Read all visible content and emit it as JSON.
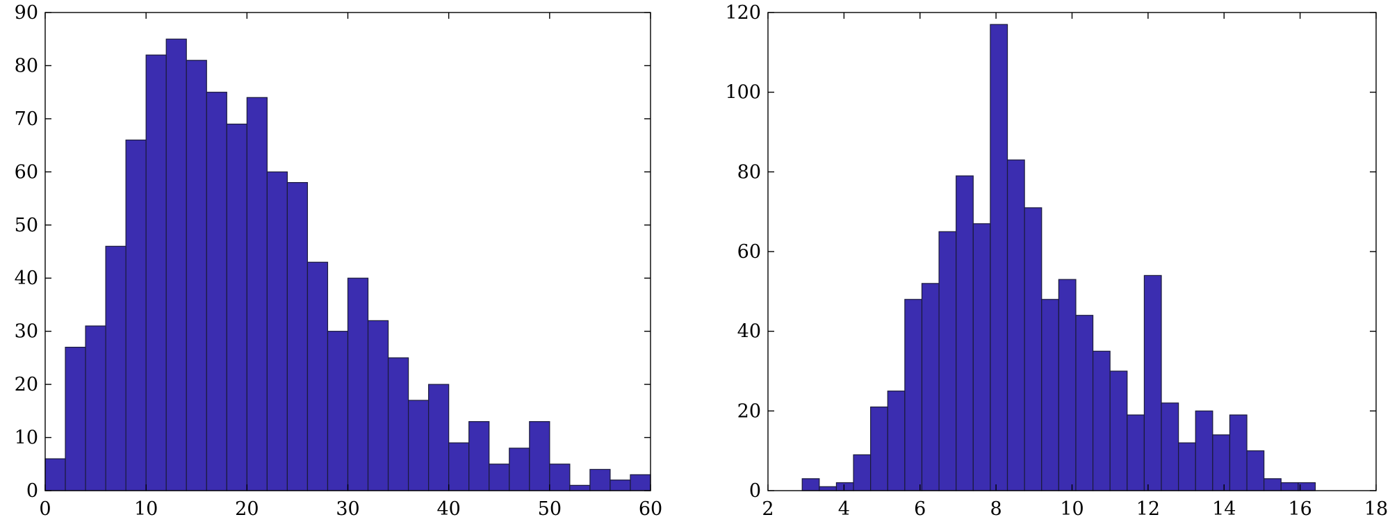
{
  "bar_color": "#3b2db0",
  "chart_data": [
    {
      "type": "bar",
      "title": "",
      "xlabel": "",
      "ylabel": "",
      "xlim": [
        0,
        60
      ],
      "ylim": [
        0,
        90
      ],
      "x_ticks": [
        0,
        10,
        20,
        30,
        40,
        50,
        60
      ],
      "y_ticks": [
        0,
        10,
        20,
        30,
        40,
        50,
        60,
        70,
        80,
        90
      ],
      "bin_edges": [
        0,
        2,
        4,
        6,
        8,
        10,
        12,
        14,
        16,
        18,
        20,
        22,
        24,
        26,
        28,
        30,
        32,
        34,
        36,
        38,
        40,
        42,
        44,
        46,
        48,
        50,
        52,
        54,
        56,
        58,
        60
      ],
      "values": [
        6,
        27,
        31,
        46,
        66,
        82,
        85,
        81,
        75,
        69,
        74,
        60,
        58,
        43,
        30,
        40,
        32,
        25,
        17,
        20,
        9,
        13,
        5,
        8,
        13,
        5,
        1,
        4,
        2,
        3
      ],
      "grid": false
    },
    {
      "type": "bar",
      "title": "",
      "xlabel": "",
      "ylabel": "",
      "xlim": [
        2,
        18
      ],
      "ylim": [
        0,
        120
      ],
      "x_ticks": [
        2,
        4,
        6,
        8,
        10,
        12,
        14,
        16,
        18
      ],
      "y_ticks": [
        0,
        20,
        40,
        60,
        80,
        100,
        120
      ],
      "bin_edges": [
        2.9,
        3.35,
        3.8,
        4.25,
        4.7,
        5.15,
        5.6,
        6.05,
        6.5,
        6.95,
        7.4,
        7.85,
        8.3,
        8.75,
        9.2,
        9.65,
        10.1,
        10.55,
        11.0,
        11.45,
        11.9,
        12.35,
        12.8,
        13.25,
        13.7,
        14.15,
        14.6,
        15.05,
        15.5,
        15.95,
        16.4
      ],
      "values": [
        3,
        1,
        2,
        9,
        21,
        25,
        48,
        52,
        65,
        79,
        67,
        117,
        83,
        71,
        48,
        53,
        44,
        35,
        30,
        19,
        54,
        22,
        12,
        20,
        14,
        19,
        10,
        3,
        2,
        2
      ],
      "grid": false
    }
  ]
}
